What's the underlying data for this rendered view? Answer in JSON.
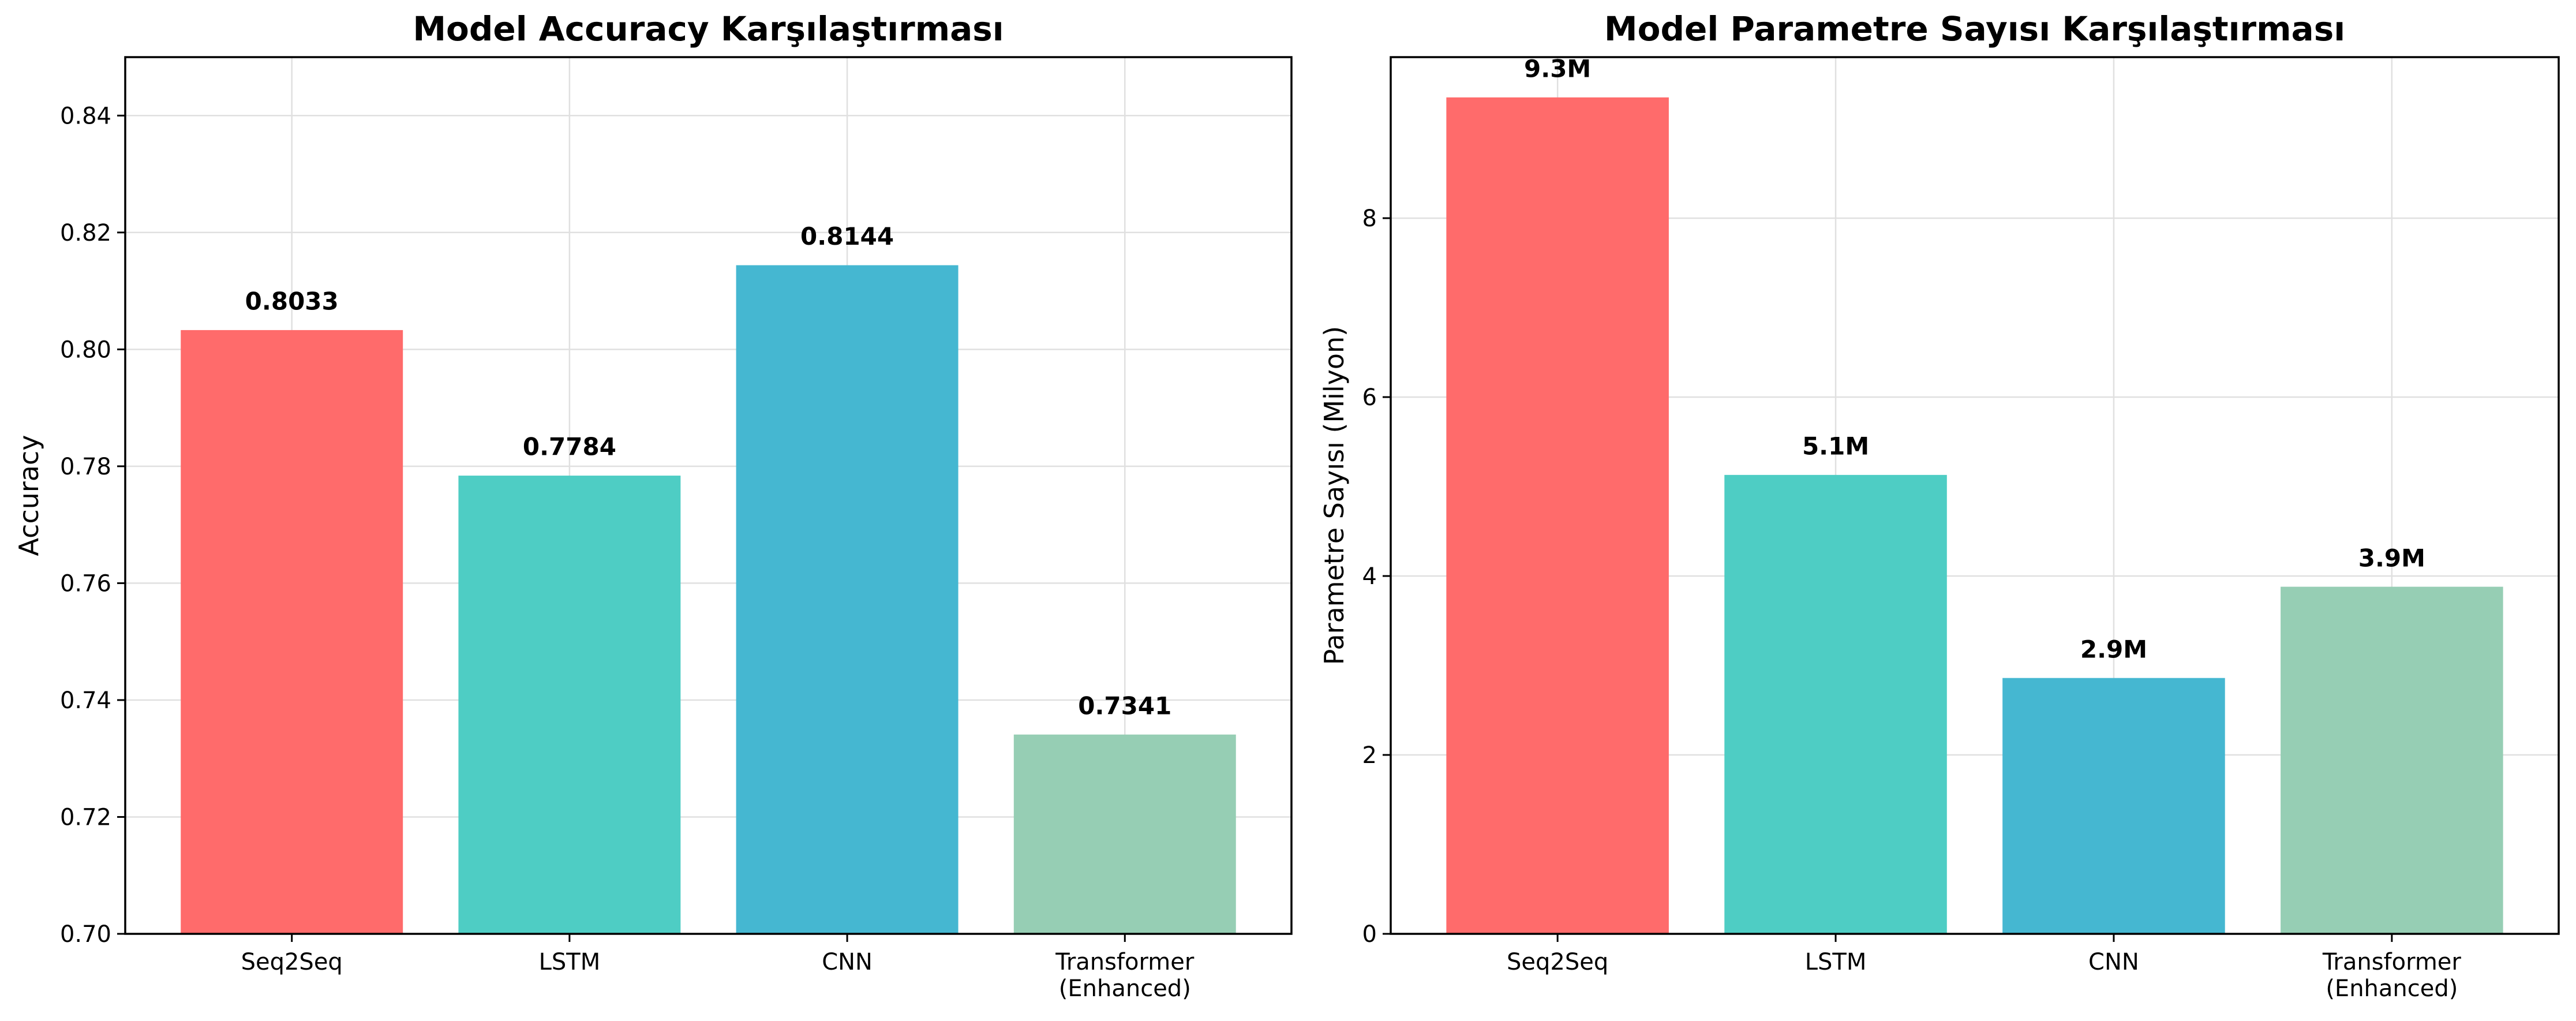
{
  "chart_data": [
    {
      "type": "bar",
      "title": "Model Accuracy Karşılaştırması",
      "xlabel": "",
      "ylabel": "Accuracy",
      "categories": [
        [
          "Seq2Seq"
        ],
        [
          "LSTM"
        ],
        [
          "CNN"
        ],
        [
          "Transformer",
          "(Enhanced)"
        ]
      ],
      "values": [
        0.8033,
        0.7784,
        0.8144,
        0.7341
      ],
      "data_labels": [
        "0.8033",
        "0.7784",
        "0.8144",
        "0.7341"
      ],
      "colors": [
        "#ff6b6b",
        "#4ecdc4",
        "#45b7d1",
        "#96ceb4"
      ],
      "ylim": [
        0.7,
        0.85
      ],
      "yticks": [
        0.7,
        0.72,
        0.74,
        0.76,
        0.78,
        0.8,
        0.82,
        0.84
      ],
      "ytick_labels": [
        "0.70",
        "0.72",
        "0.74",
        "0.76",
        "0.78",
        "0.80",
        "0.82",
        "0.84"
      ],
      "grid": true
    },
    {
      "type": "bar",
      "title": "Model Parametre Sayısı Karşılaştırması",
      "xlabel": "",
      "ylabel": "Parametre Sayısı (Milyon)",
      "categories": [
        [
          "Seq2Seq"
        ],
        [
          "LSTM"
        ],
        [
          "CNN"
        ],
        [
          "Transformer",
          "(Enhanced)"
        ]
      ],
      "values": [
        9.35,
        5.13,
        2.86,
        3.88
      ],
      "data_labels": [
        "9.3M",
        "5.1M",
        "2.9M",
        "3.9M"
      ],
      "colors": [
        "#ff6b6b",
        "#4ecdc4",
        "#45b7d1",
        "#96ceb4"
      ],
      "ylim": [
        0,
        9.8
      ],
      "yticks": [
        0,
        2,
        4,
        6,
        8
      ],
      "ytick_labels": [
        "0",
        "2",
        "4",
        "6",
        "8"
      ],
      "grid": true
    }
  ]
}
